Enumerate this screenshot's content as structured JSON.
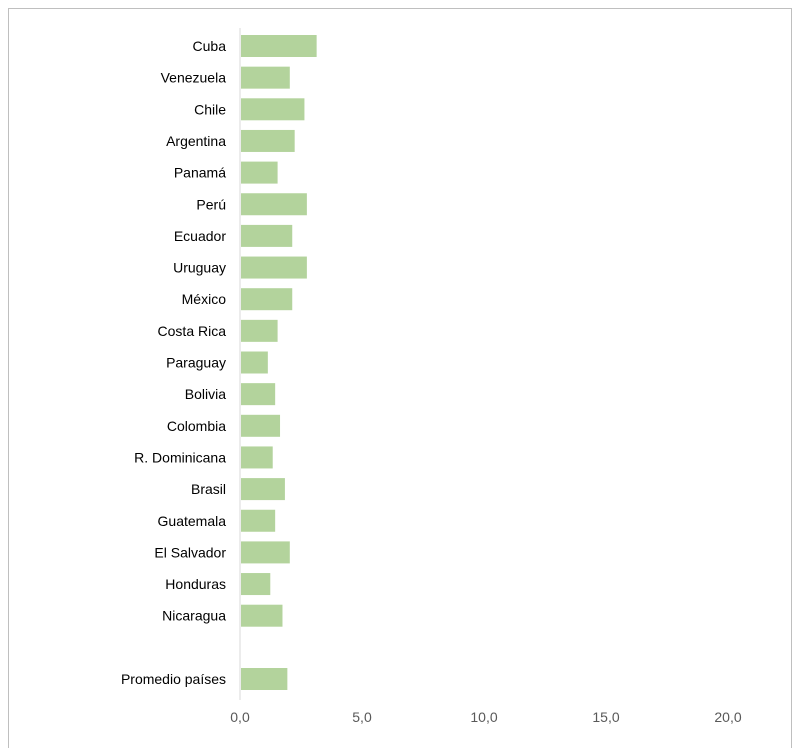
{
  "chart_data": {
    "type": "bar",
    "orientation": "horizontal",
    "categories": [
      "Cuba",
      "Venezuela",
      "Chile",
      "Argentina",
      "Panamá",
      "Perú",
      "Ecuador",
      "Uruguay",
      "México",
      "Costa Rica",
      "Paraguay",
      "Bolivia",
      "Colombia",
      "R. Dominicana",
      "Brasil",
      "Guatemala",
      "El Salvador",
      "Honduras",
      "Nicaragua",
      "",
      "Promedio países"
    ],
    "values": [
      3.1,
      2.0,
      2.6,
      2.2,
      1.5,
      2.7,
      2.1,
      2.7,
      2.1,
      1.5,
      1.1,
      1.4,
      1.6,
      1.3,
      1.8,
      1.4,
      2.0,
      1.2,
      1.7,
      null,
      1.9
    ],
    "xlim": [
      0,
      20
    ],
    "x_ticks": [
      0,
      5,
      10,
      15,
      20
    ],
    "x_tick_labels": [
      "0,0",
      "5,0",
      "10,0",
      "15,0",
      "20,0"
    ],
    "grid": false,
    "legend": "none",
    "colors": {
      "bar": "#b3d39c",
      "axis": "#d9d9d9",
      "frame": "#bfbfbf"
    }
  }
}
